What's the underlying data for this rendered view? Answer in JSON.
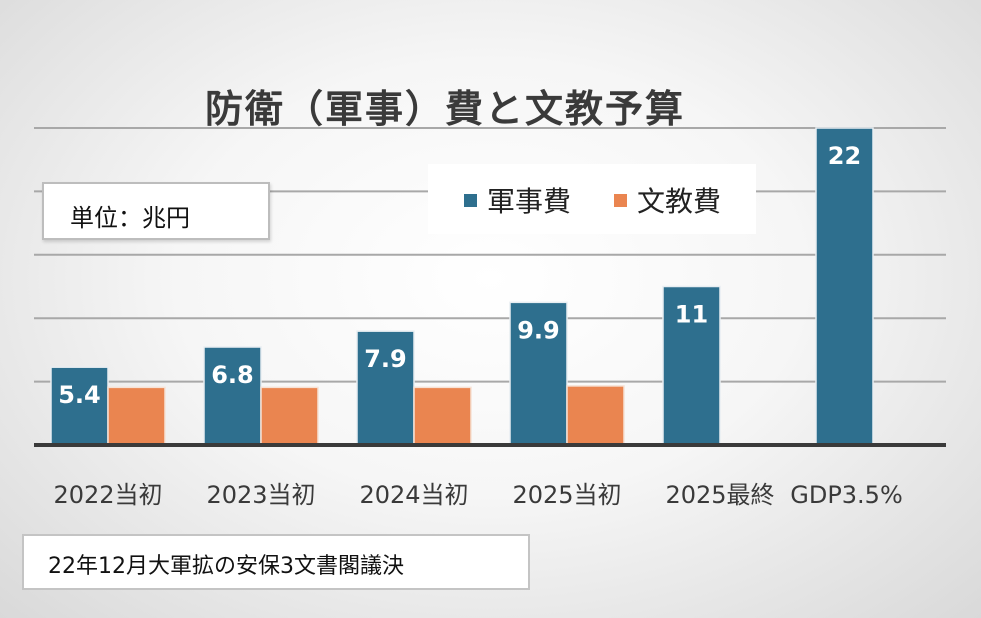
{
  "chart_data": {
    "type": "bar",
    "title": "防衛（軍事）費と文教予算",
    "unit_label": "単位：兆円",
    "categories": [
      "2022当初",
      "2023当初",
      "2024当初",
      "2025当初",
      "2025最終",
      "GDP3.5%"
    ],
    "series": [
      {
        "name": "軍事費",
        "color": "#2e6f8e",
        "values": [
          5.4,
          6.8,
          7.9,
          9.9,
          11,
          22
        ]
      },
      {
        "name": "文教費",
        "color": "#ea8550",
        "values": [
          4.0,
          4.0,
          4.0,
          4.1,
          null,
          null
        ]
      }
    ],
    "data_labels": [
      "5.4",
      "6.8",
      "7.9",
      "9.9",
      "11",
      "22"
    ],
    "ylim": [
      0,
      22.0
    ],
    "grid": true,
    "legend_position": "top-center",
    "note": "22年12月大軍拡の安保3文書閣議決"
  }
}
